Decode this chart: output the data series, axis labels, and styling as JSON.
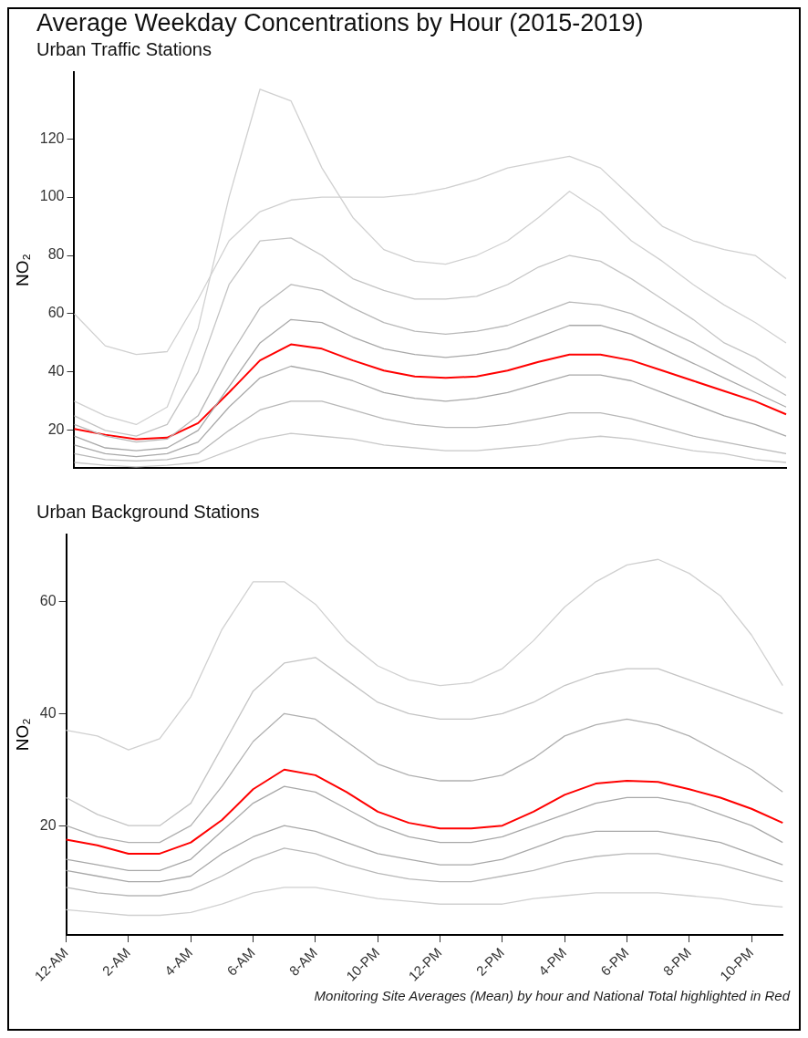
{
  "chart_data": [
    {
      "type": "line",
      "title": "Average Weekday Concentrations by Hour (2015-2019)",
      "subtitle": "Urban Traffic Stations",
      "ylabel": "NO₂",
      "categories": [
        null,
        null,
        null,
        null,
        null,
        null,
        null,
        null,
        null,
        null,
        null,
        null,
        null,
        null,
        null,
        null,
        null,
        null,
        null,
        null,
        null,
        null,
        null,
        null
      ],
      "ylim": [
        7,
        143
      ],
      "yticks": [
        20,
        40,
        60,
        80,
        100,
        120
      ],
      "tick_labels": "y",
      "grid": false,
      "legend": false,
      "series": [
        {
          "color": "#d0d0d0",
          "values": [
            60,
            49,
            46,
            47,
            65,
            85,
            95,
            99,
            100,
            100,
            100,
            101,
            103,
            106,
            110,
            112,
            114,
            110,
            100,
            90,
            85,
            82,
            80,
            72
          ]
        },
        {
          "color": "#d0d0d0",
          "values": [
            30,
            25,
            22,
            28,
            55,
            100,
            137,
            133,
            110,
            93,
            82,
            78,
            77,
            80,
            85,
            93,
            102,
            95,
            85,
            78,
            70,
            63,
            57,
            50
          ]
        },
        {
          "color": "#c4c4c4",
          "values": [
            25,
            20,
            18,
            22,
            40,
            70,
            85,
            86,
            80,
            72,
            68,
            65,
            65,
            66,
            70,
            76,
            80,
            78,
            72,
            65,
            58,
            50,
            45,
            38
          ]
        },
        {
          "color": "#b8b8b8",
          "values": [
            22,
            18,
            16,
            17,
            25,
            45,
            62,
            70,
            68,
            62,
            57,
            54,
            53,
            54,
            56,
            60,
            64,
            63,
            60,
            55,
            50,
            44,
            38,
            32
          ]
        },
        {
          "color": "#a8a8a8",
          "values": [
            18,
            14,
            13,
            14,
            20,
            35,
            50,
            58,
            57,
            52,
            48,
            46,
            45,
            46,
            48,
            52,
            56,
            56,
            53,
            48,
            43,
            38,
            33,
            28
          ]
        },
        {
          "color": "#a8a8a8",
          "values": [
            15,
            12,
            11,
            12,
            16,
            28,
            38,
            42,
            40,
            37,
            33,
            31,
            30,
            31,
            33,
            36,
            39,
            39,
            37,
            33,
            29,
            25,
            22,
            18
          ]
        },
        {
          "color": "#b8b8b8",
          "values": [
            12,
            10,
            9.5,
            10,
            12,
            20,
            27,
            30,
            30,
            27,
            24,
            22,
            21,
            21,
            22,
            24,
            26,
            26,
            24,
            21,
            18,
            16,
            14,
            12
          ]
        },
        {
          "color": "#c8c8c8",
          "values": [
            9,
            8,
            7.5,
            8,
            9,
            13,
            17,
            19,
            18,
            17,
            15,
            14,
            13,
            13,
            14,
            15,
            17,
            18,
            17,
            15,
            13,
            12,
            10,
            9
          ]
        },
        {
          "color": "#ff0000",
          "values": [
            20.5,
            18.5,
            17,
            17.5,
            22.5,
            33,
            44,
            49.5,
            48,
            44,
            40.5,
            38.5,
            38,
            38.5,
            40.5,
            43.5,
            46,
            46,
            44,
            40.5,
            37,
            33.5,
            30,
            25.5
          ]
        }
      ]
    },
    {
      "type": "line",
      "subtitle": "Urban Background Stations",
      "ylabel": "NO₂",
      "annotations": [
        "Monitoring Site Averages (Mean) by hour and National Total highlighted in Red"
      ],
      "categories": [
        "12-AM",
        null,
        "2-AM",
        null,
        "4-AM",
        null,
        "6-AM",
        null,
        "8-AM",
        null,
        "10-PM",
        null,
        "12-PM",
        null,
        "2-PM",
        null,
        "4-PM",
        null,
        "6-PM",
        null,
        "8-PM",
        null,
        "10-PM",
        null
      ],
      "ylim": [
        0.5,
        72
      ],
      "yticks": [
        20,
        40,
        60
      ],
      "grid": false,
      "legend": false,
      "series": [
        {
          "color": "#d0d0d0",
          "values": [
            37,
            36,
            33.5,
            35.5,
            43,
            55,
            63.5,
            63.5,
            59.5,
            53,
            48.5,
            46,
            45,
            45.5,
            48,
            53,
            59,
            63.5,
            66.5,
            67.5,
            65,
            61,
            54,
            45
          ]
        },
        {
          "color": "#c4c4c4",
          "values": [
            25,
            22,
            20,
            20,
            24,
            34,
            44,
            49,
            50,
            46,
            42,
            40,
            39,
            39,
            40,
            42,
            45,
            47,
            48,
            48,
            46,
            44,
            42,
            40
          ]
        },
        {
          "color": "#b0b0b0",
          "values": [
            20,
            18,
            17,
            17,
            20,
            27,
            35,
            40,
            39,
            35,
            31,
            29,
            28,
            28,
            29,
            32,
            36,
            38,
            39,
            38,
            36,
            33,
            30,
            26
          ]
        },
        {
          "color": "#a8a8a8",
          "values": [
            14,
            13,
            12,
            12,
            14,
            19,
            24,
            27,
            26,
            23,
            20,
            18,
            17,
            17,
            18,
            20,
            22,
            24,
            25,
            25,
            24,
            22,
            20,
            17
          ]
        },
        {
          "color": "#a8a8a8",
          "values": [
            12,
            11,
            10,
            10,
            11,
            15,
            18,
            20,
            19,
            17,
            15,
            14,
            13,
            13,
            14,
            16,
            18,
            19,
            19,
            19,
            18,
            17,
            15,
            13
          ]
        },
        {
          "color": "#b8b8b8",
          "values": [
            9,
            8,
            7.5,
            7.5,
            8.5,
            11,
            14,
            16,
            15,
            13,
            11.5,
            10.5,
            10,
            10,
            11,
            12,
            13.5,
            14.5,
            15,
            15,
            14,
            13,
            11.5,
            10
          ]
        },
        {
          "color": "#d0d0d0",
          "values": [
            5,
            4.5,
            4,
            4,
            4.5,
            6,
            8,
            9,
            9,
            8,
            7,
            6.5,
            6,
            6,
            6,
            7,
            7.5,
            8,
            8,
            8,
            7.5,
            7,
            6,
            5.5
          ]
        },
        {
          "color": "#ff0000",
          "values": [
            17.5,
            16.5,
            15,
            15,
            17,
            21,
            26.5,
            30,
            29,
            26,
            22.5,
            20.5,
            19.5,
            19.5,
            20,
            22.5,
            25.5,
            27.5,
            28,
            27.8,
            26.5,
            25,
            23,
            20.5
          ]
        }
      ]
    }
  ]
}
